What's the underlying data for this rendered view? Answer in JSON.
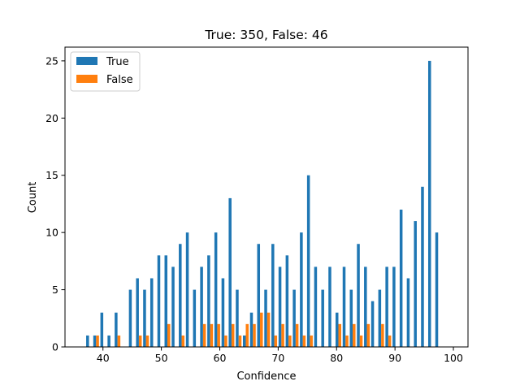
{
  "chart_data": {
    "type": "bar",
    "title": "True: 350, False: 46",
    "xlabel": "Confidence",
    "ylabel": "Count",
    "xlim": [
      33.5,
      102.5
    ],
    "ylim": [
      0,
      26.2
    ],
    "xticks": [
      40,
      50,
      60,
      70,
      80,
      90,
      100
    ],
    "yticks": [
      0,
      5,
      10,
      15,
      20,
      25
    ],
    "bin_width": 1.22,
    "bin_starts": [
      37.0,
      38.22,
      39.44,
      40.66,
      41.88,
      43.1,
      44.32,
      45.54,
      46.76,
      47.98,
      49.2,
      50.42,
      51.64,
      52.86,
      54.08,
      55.3,
      56.52,
      57.74,
      58.96,
      60.18,
      61.4,
      62.62,
      63.84,
      65.06,
      66.28,
      67.5,
      68.72,
      69.94,
      71.16,
      72.38,
      73.6,
      74.82,
      76.04,
      77.26,
      78.48,
      79.7,
      80.92,
      82.14,
      83.36,
      84.58,
      85.8,
      87.02,
      88.24,
      89.46,
      90.68,
      91.9,
      93.12,
      94.34,
      95.56,
      96.78,
      98.0
    ],
    "legend": {
      "position": "top-left",
      "entries": [
        "True",
        "False"
      ]
    },
    "series": [
      {
        "name": "True",
        "color": "#1f77b4",
        "values": [
          1,
          1,
          3,
          1,
          3,
          0,
          5,
          6,
          5,
          6,
          8,
          8,
          7,
          9,
          10,
          5,
          7,
          8,
          10,
          6,
          13,
          5,
          1,
          3,
          9,
          5,
          9,
          7,
          8,
          5,
          10,
          15,
          7,
          5,
          7,
          3,
          7,
          5,
          9,
          7,
          4,
          5,
          7,
          7,
          12,
          6,
          11,
          14,
          25,
          10,
          0
        ]
      },
      {
        "name": "False",
        "color": "#ff7f0e",
        "values": [
          0,
          1,
          0,
          0,
          1,
          0,
          0,
          1,
          1,
          0,
          0,
          2,
          0,
          1,
          0,
          0,
          2,
          2,
          2,
          1,
          2,
          1,
          2,
          2,
          3,
          3,
          1,
          2,
          1,
          2,
          1,
          1,
          0,
          0,
          0,
          2,
          1,
          2,
          1,
          2,
          0,
          2,
          1,
          0,
          0,
          0,
          0,
          0,
          0,
          0,
          0
        ]
      }
    ]
  }
}
